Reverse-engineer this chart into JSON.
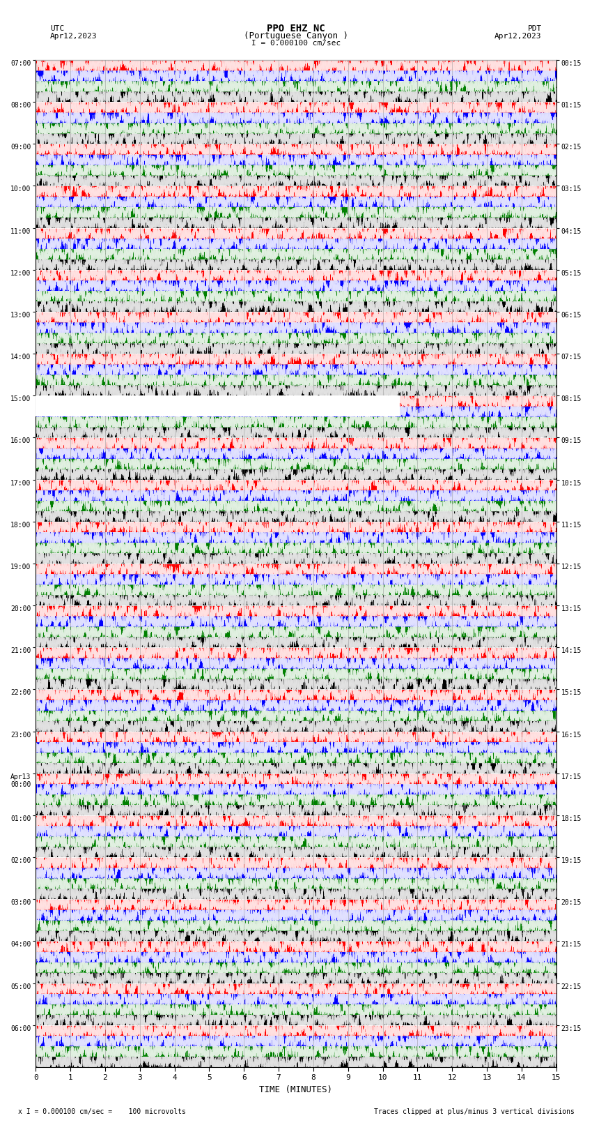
{
  "title_line1": "PPO EHZ NC",
  "title_line2": "(Portuguese Canyon )",
  "title_line3": "I = 0.000100 cm/sec",
  "left_label_utc": "UTC",
  "left_label_date": "Apr12,2023",
  "right_label_pdt": "PDT",
  "right_label_date": "Apr12,2023",
  "left_times": [
    "07:00",
    "08:00",
    "09:00",
    "10:00",
    "11:00",
    "12:00",
    "13:00",
    "14:00",
    "15:00",
    "16:00",
    "17:00",
    "18:00",
    "19:00",
    "20:00",
    "21:00",
    "22:00",
    "23:00",
    "Apr13\n00:00",
    "01:00",
    "02:00",
    "03:00",
    "04:00",
    "05:00",
    "06:00"
  ],
  "right_times": [
    "00:15",
    "01:15",
    "02:15",
    "03:15",
    "04:15",
    "05:15",
    "06:15",
    "07:15",
    "08:15",
    "09:15",
    "10:15",
    "11:15",
    "12:15",
    "13:15",
    "14:15",
    "15:15",
    "16:15",
    "17:15",
    "18:15",
    "19:15",
    "20:15",
    "21:15",
    "22:15",
    "23:15"
  ],
  "xlabel": "TIME (MINUTES)",
  "xticks": [
    0,
    1,
    2,
    3,
    4,
    5,
    6,
    7,
    8,
    9,
    10,
    11,
    12,
    13,
    14,
    15
  ],
  "xlim": [
    0,
    15
  ],
  "n_rows": 24,
  "trace_colors_cycle": [
    "red",
    "blue",
    "green",
    "black"
  ],
  "bg_color": "white",
  "bottom_label": "x I = 0.000100 cm/sec =    100 microvolts",
  "bottom_right_label": "Traces clipped at plus/minus 3 vertical divisions",
  "figsize": [
    8.5,
    16.13
  ],
  "dpi": 100
}
